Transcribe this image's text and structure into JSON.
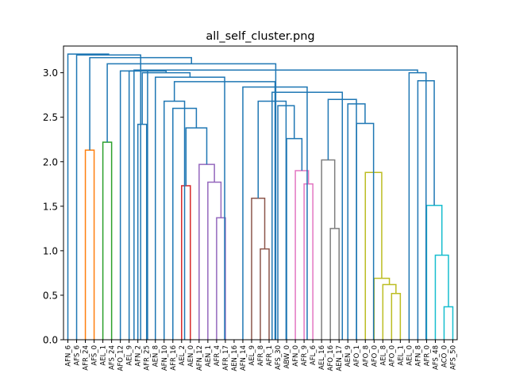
{
  "chart_data": {
    "type": "dendrogram",
    "title": "all_self_cluster.png",
    "xlabel": "",
    "ylabel": "",
    "ylim": [
      0,
      3.3
    ],
    "yticks": [
      0.0,
      0.5,
      1.0,
      1.5,
      2.0,
      2.5,
      3.0
    ],
    "ytick_labels": [
      "0.0",
      "0.5",
      "1.0",
      "1.5",
      "2.0",
      "2.5",
      "3.0"
    ],
    "grid": false,
    "leaves": [
      "AFN_6",
      "AFS_6",
      "AFR_24",
      "AFS_0",
      "AEL_1",
      "AFS_24",
      "AFO_12",
      "AEL_9",
      "AFN_2",
      "AFR_25",
      "AEN_8",
      "AFN_10",
      "AFR_16",
      "AEL_2",
      "AEN_0",
      "AFN_12",
      "AEN_1",
      "AFR_4",
      "AFR_17",
      "AEN_16",
      "AFN_14",
      "AEL_9",
      "AFR_8",
      "AFR_1",
      "AFS_30",
      "ABW_0",
      "AFN_0",
      "AFR_9",
      "AFL_6",
      "AEL_16",
      "AFO_16",
      "AEN_17",
      "AEN_9",
      "AFO_1",
      "AFO_8",
      "AFO_0",
      "AEL_8",
      "AFO_0",
      "AEL_1",
      "AEL_0",
      "AFN_8",
      "AFR_0",
      "AFS_48",
      "ACO_0",
      "AFS_50"
    ],
    "colors": {
      "above": "#1f77b4",
      "orange": "#ff7f0e",
      "green": "#2ca02c",
      "red": "#d62728",
      "purple": "#9467bd",
      "brown": "#8c564b",
      "pink": "#e377c2",
      "gray": "#7f7f7f",
      "olive": "#bcbd22",
      "cyan": "#17becf"
    },
    "links": [
      {
        "a": 3,
        "b": 4,
        "h": 2.13,
        "c": "orange"
      },
      {
        "a": 5,
        "b": 6,
        "h": 2.22,
        "c": "green"
      },
      {
        "a": 9,
        "b": 10,
        "h": 2.42,
        "c": "above"
      },
      {
        "a": 14,
        "b": 15,
        "h": 1.73,
        "c": "red"
      },
      {
        "a": 18,
        "b": 19,
        "h": 1.37,
        "c": "purple"
      },
      {
        "a": 17,
        "b": 18.5,
        "h": 1.77,
        "c": "purple"
      },
      {
        "a": 16,
        "b": 17.75,
        "h": 1.97,
        "c": "purple"
      },
      {
        "a": 14.5,
        "b": 16.875,
        "h": 2.38,
        "c": "above"
      },
      {
        "a": 13,
        "b": 15.6875,
        "h": 2.6,
        "c": "above"
      },
      {
        "a": 12,
        "b": 14.34,
        "h": 2.68,
        "c": "above"
      },
      {
        "a": 23,
        "b": 24,
        "h": 1.02,
        "c": "brown"
      },
      {
        "a": 22,
        "b": 23.5,
        "h": 1.59,
        "c": "brown"
      },
      {
        "a": 28,
        "b": 29,
        "h": 1.75,
        "c": "pink"
      },
      {
        "a": 27,
        "b": 28.5,
        "h": 1.9,
        "c": "pink"
      },
      {
        "a": 26,
        "b": 27.75,
        "h": 2.26,
        "c": "above"
      },
      {
        "a": 25,
        "b": 26.875,
        "h": 2.63,
        "c": "above"
      },
      {
        "a": 22.75,
        "b": 25.94,
        "h": 2.68,
        "c": "above"
      },
      {
        "a": 31,
        "b": 32,
        "h": 1.25,
        "c": "gray"
      },
      {
        "a": 30,
        "b": 31.5,
        "h": 2.02,
        "c": "gray"
      },
      {
        "a": 38,
        "b": 39,
        "h": 0.52,
        "c": "olive"
      },
      {
        "a": 37,
        "b": 38.5,
        "h": 0.62,
        "c": "olive"
      },
      {
        "a": 36,
        "b": 37.75,
        "h": 0.69,
        "c": "olive"
      },
      {
        "a": 35,
        "b": 36.875,
        "h": 1.88,
        "c": "olive"
      },
      {
        "a": 34,
        "b": 35.94,
        "h": 2.43,
        "c": "above"
      },
      {
        "a": 33,
        "b": 34.97,
        "h": 2.65,
        "c": "above"
      },
      {
        "a": 30.75,
        "b": 33.98,
        "h": 2.7,
        "c": "above"
      },
      {
        "a": 24.34,
        "b": 32.37,
        "h": 2.78,
        "c": "above"
      },
      {
        "a": 21,
        "b": 28.35,
        "h": 2.84,
        "c": "above"
      },
      {
        "a": 13.17,
        "b": 24.68,
        "h": 2.9,
        "c": "above"
      },
      {
        "a": 11,
        "b": 18.92,
        "h": 2.95,
        "c": "above"
      },
      {
        "a": 9.5,
        "b": 14.96,
        "h": 3.0,
        "c": "above"
      },
      {
        "a": 8,
        "b": 12.23,
        "h": 3.02,
        "c": "above"
      },
      {
        "a": 7,
        "b": 10.11,
        "h": 3.02,
        "c": "above"
      },
      {
        "a": 44,
        "b": 45,
        "h": 0.37,
        "c": "cyan"
      },
      {
        "a": 43,
        "b": 44.5,
        "h": 0.95,
        "c": "cyan"
      },
      {
        "a": 42,
        "b": 43.75,
        "h": 1.51,
        "c": "cyan"
      },
      {
        "a": 41,
        "b": 42.875,
        "h": 2.91,
        "c": "above"
      },
      {
        "a": 40,
        "b": 41.94,
        "h": 3.0,
        "c": "above"
      },
      {
        "a": 8.56,
        "b": 40.97,
        "h": 3.03,
        "c": "above"
      },
      {
        "a": 5.5,
        "b": 24.76,
        "h": 3.1,
        "c": "above"
      },
      {
        "a": 3.5,
        "b": 15.13,
        "h": 3.17,
        "c": "above"
      },
      {
        "a": 2,
        "b": 9.32,
        "h": 3.2,
        "c": "above"
      },
      {
        "a": 1,
        "b": 5.66,
        "h": 3.21,
        "c": "above"
      }
    ]
  }
}
